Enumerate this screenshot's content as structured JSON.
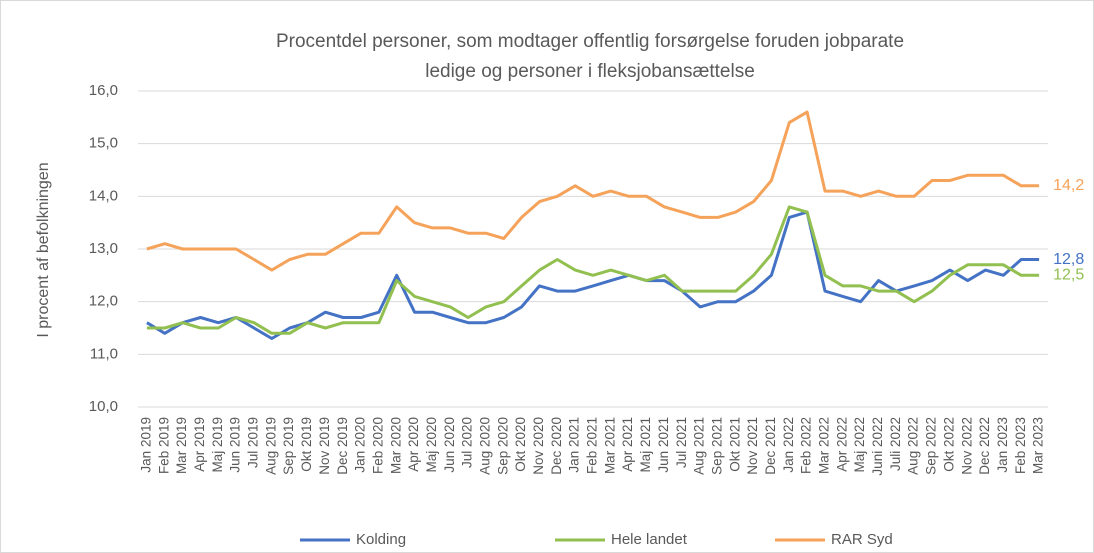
{
  "chart_data": {
    "type": "line",
    "title": [
      "Procentdel personer, som modtager offentlig forsørgelse foruden jobparate",
      "ledige og personer i fleksjobansættelse"
    ],
    "y_label": "I procent af befolkningen",
    "categories": [
      "Jan 2019",
      "Feb 2019",
      "Mar 2019",
      "Apr 2019",
      "Maj 2019",
      "Jun 2019",
      "Jul 2019",
      "Aug 2019",
      "Sep 2019",
      "Okt 2019",
      "Nov 2019",
      "Dec 2019",
      "Jan 2020",
      "Feb 2020",
      "Mar 2020",
      "Apr 2020",
      "Maj 2020",
      "Jun 2020",
      "Jul 2020",
      "Aug 2020",
      "Sep 2020",
      "Okt 2020",
      "Nov 2020",
      "Dec 2020",
      "Jan 2021",
      "Feb 2021",
      "Mar 2021",
      "Apr 2021",
      "Maj 2021",
      "Jun 2021",
      "Jul 2021",
      "Aug 2021",
      "Sep 2021",
      "Okt 2021",
      "Nov 2021",
      "Dec 2021",
      "Jan 2022",
      "Feb 2022",
      "Mar 2022",
      "Apr 2022",
      "Maj 2022",
      "Juni 2022",
      "Juli 2022",
      "Aug 2022",
      "Sep 2022",
      "Okt 2022",
      "Nov 2022",
      "Dec 2022",
      "Jan 2023",
      "Feb 2023",
      "Mar 2023"
    ],
    "series": [
      {
        "name": "Kolding",
        "color": "#4472c4",
        "values": [
          11.6,
          11.4,
          11.6,
          11.7,
          11.6,
          11.7,
          11.5,
          11.3,
          11.5,
          11.6,
          11.8,
          11.7,
          11.7,
          11.8,
          12.5,
          11.8,
          11.8,
          11.7,
          11.6,
          11.6,
          11.7,
          11.9,
          12.3,
          12.2,
          12.2,
          12.3,
          12.4,
          12.5,
          12.4,
          12.4,
          12.2,
          11.9,
          12.0,
          12.0,
          12.2,
          12.5,
          13.6,
          13.7,
          12.2,
          12.1,
          12.0,
          12.4,
          12.2,
          12.3,
          12.4,
          12.6,
          12.4,
          12.6,
          12.5,
          12.8,
          12.8
        ],
        "value_labels": [
          null,
          null,
          null,
          null,
          null,
          null,
          null,
          null,
          null,
          null,
          null,
          null,
          null,
          null,
          null,
          null,
          null,
          null,
          null,
          null,
          null,
          null,
          null,
          null,
          null,
          null,
          null,
          null,
          null,
          null,
          null,
          null,
          null,
          null,
          null,
          null,
          null,
          null,
          null,
          null,
          null,
          null,
          null,
          null,
          null,
          null,
          null,
          null,
          null,
          null,
          "12,8"
        ]
      },
      {
        "name": "Hele landet",
        "color": "#92c050",
        "values": [
          11.5,
          11.5,
          11.6,
          11.5,
          11.5,
          11.7,
          11.6,
          11.4,
          11.4,
          11.6,
          11.5,
          11.6,
          11.6,
          11.6,
          12.4,
          12.1,
          12.0,
          11.9,
          11.7,
          11.9,
          12.0,
          12.3,
          12.6,
          12.8,
          12.6,
          12.5,
          12.6,
          12.5,
          12.4,
          12.5,
          12.2,
          12.2,
          12.2,
          12.2,
          12.5,
          12.9,
          13.8,
          13.7,
          12.5,
          12.3,
          12.3,
          12.2,
          12.2,
          12.0,
          12.2,
          12.5,
          12.7,
          12.7,
          12.7,
          12.5,
          12.5
        ],
        "value_labels": [
          null,
          null,
          null,
          null,
          null,
          null,
          null,
          null,
          null,
          null,
          null,
          null,
          null,
          null,
          null,
          null,
          null,
          null,
          null,
          null,
          null,
          null,
          null,
          null,
          null,
          null,
          null,
          null,
          null,
          null,
          null,
          null,
          null,
          null,
          null,
          null,
          null,
          null,
          null,
          null,
          null,
          null,
          null,
          null,
          null,
          null,
          null,
          null,
          null,
          null,
          "12,5"
        ]
      },
      {
        "name": "RAR Syd",
        "color": "#f5a25a",
        "values": [
          13.0,
          13.1,
          13.0,
          13.0,
          13.0,
          13.0,
          12.8,
          12.6,
          12.8,
          12.9,
          12.9,
          13.1,
          13.3,
          13.3,
          13.8,
          13.5,
          13.4,
          13.4,
          13.3,
          13.3,
          13.2,
          13.6,
          13.9,
          14.0,
          14.2,
          14.0,
          14.1,
          14.0,
          14.0,
          13.8,
          13.7,
          13.6,
          13.6,
          13.7,
          13.9,
          14.3,
          15.4,
          15.6,
          14.1,
          14.1,
          14.0,
          14.1,
          14.0,
          14.0,
          14.3,
          14.3,
          14.4,
          14.4,
          14.4,
          14.2,
          14.2
        ],
        "value_labels": [
          null,
          null,
          null,
          null,
          null,
          null,
          null,
          null,
          null,
          null,
          null,
          null,
          null,
          null,
          null,
          null,
          null,
          null,
          null,
          null,
          null,
          null,
          null,
          null,
          null,
          null,
          null,
          null,
          null,
          null,
          null,
          null,
          null,
          null,
          null,
          null,
          null,
          null,
          null,
          null,
          null,
          null,
          null,
          null,
          null,
          null,
          null,
          null,
          null,
          null,
          "14,2"
        ]
      }
    ],
    "ylim": [
      10,
      16
    ],
    "yticks": [
      {
        "value": 10,
        "label": "10,0"
      },
      {
        "value": 11,
        "label": "11,0"
      },
      {
        "value": 12,
        "label": "12,0"
      },
      {
        "value": 13,
        "label": "13,0"
      },
      {
        "value": 14,
        "label": "14,0"
      },
      {
        "value": 15,
        "label": "15,0"
      },
      {
        "value": 16,
        "label": "16,0"
      }
    ],
    "grid": true,
    "legend": "bottom"
  }
}
